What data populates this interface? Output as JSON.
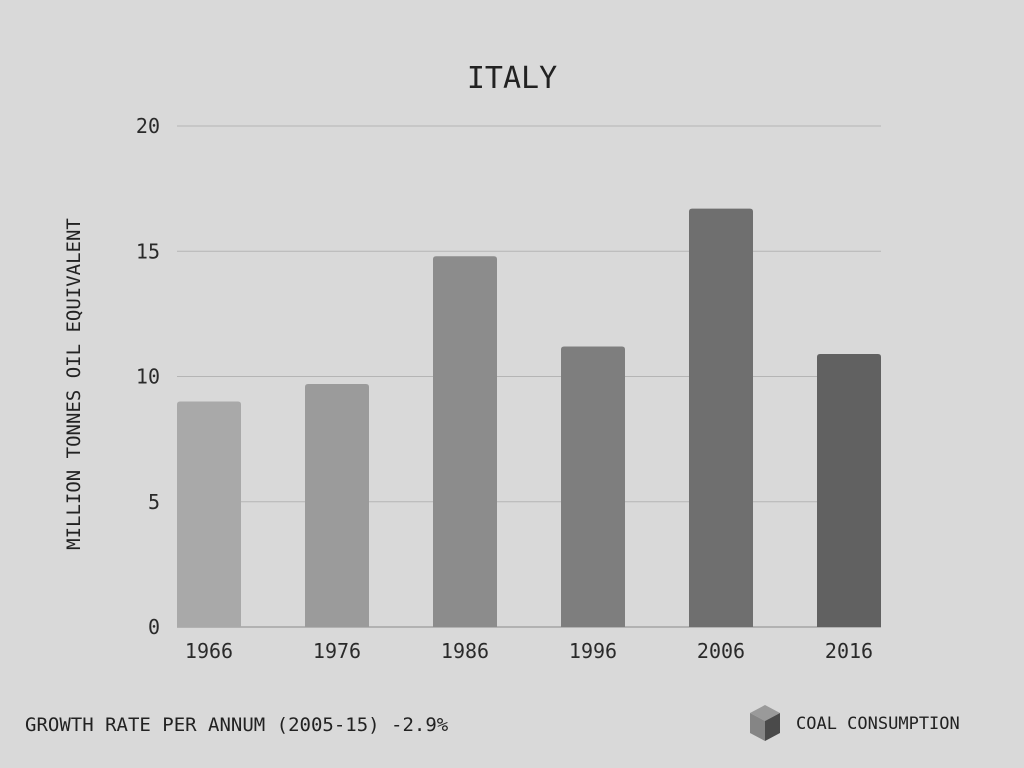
{
  "chart_data": {
    "type": "bar",
    "title": "ITALY",
    "xlabel": "",
    "ylabel": "MILLION TONNES OIL EQUIVALENT",
    "categories": [
      "1966",
      "1976",
      "1986",
      "1996",
      "2006",
      "2016"
    ],
    "values": [
      9.0,
      9.7,
      14.8,
      11.2,
      16.7,
      10.9
    ],
    "ylim": [
      0,
      20
    ],
    "yticks": [
      0,
      5,
      10,
      15,
      20
    ],
    "grid": true,
    "bar_colors": [
      "#a9a9a9",
      "#9b9b9b",
      "#8c8c8c",
      "#7e7e7e",
      "#6f6f6f",
      "#616161"
    ],
    "legend": {
      "label": "COAL CONSUMPTION",
      "icon": "cube-icon",
      "placement": "bottom-right"
    }
  },
  "footer": {
    "growth_rate": "GROWTH RATE PER ANNUM (2005-15) -2.9%"
  },
  "colors": {
    "background": "#d9d9d9",
    "grid": "#b5b5b5",
    "axis": "#a6a6a6"
  }
}
